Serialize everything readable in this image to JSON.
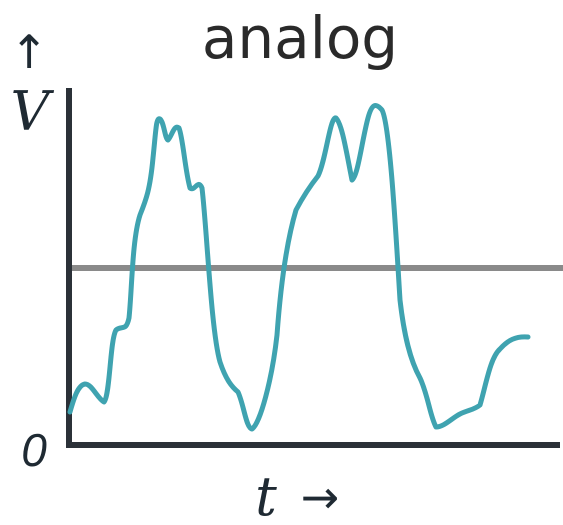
{
  "title": "analog",
  "y_axis": {
    "arrow": "↑",
    "label": "V",
    "origin_label": "0"
  },
  "x_axis": {
    "label": "t",
    "arrow": "→"
  },
  "colors": {
    "signal": "#3fa3b0",
    "threshold": "#8a8a8a",
    "axes": "#2b3138",
    "text": "#2a2a2a"
  }
}
